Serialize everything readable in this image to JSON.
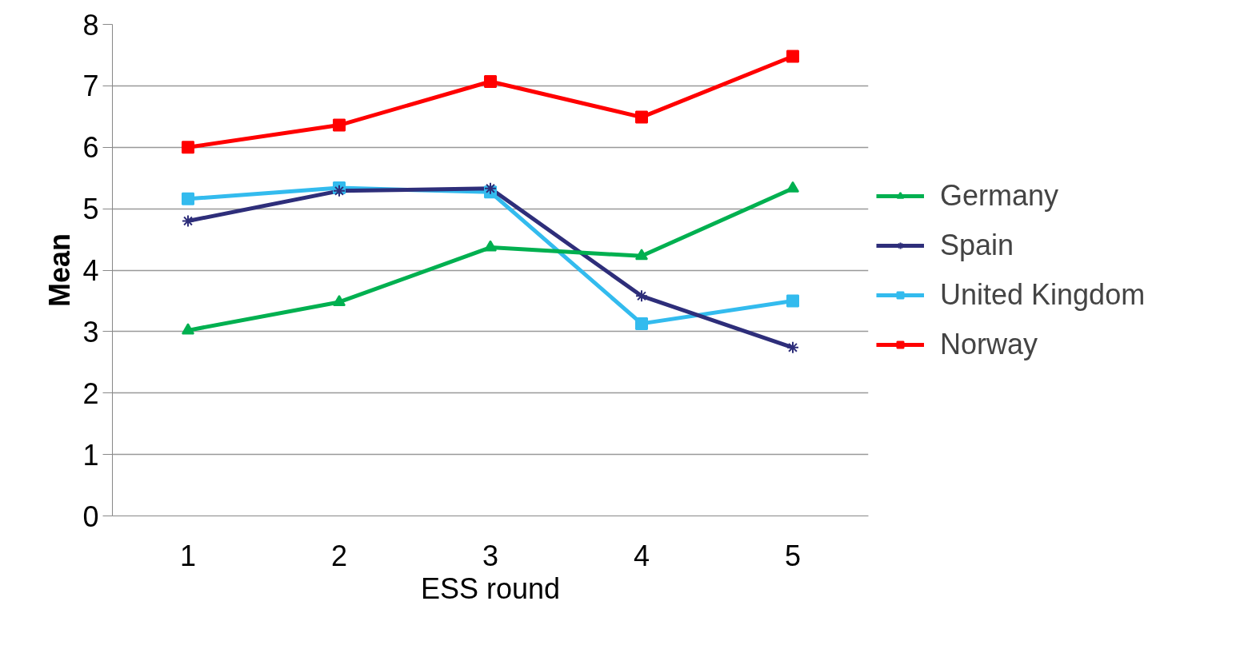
{
  "chart_data": {
    "type": "line",
    "xlabel": "ESS round",
    "ylabel": "Mean",
    "categories": [
      "1",
      "2",
      "3",
      "4",
      "5"
    ],
    "ylim": [
      0,
      8
    ],
    "yticks": [
      0,
      1,
      2,
      3,
      4,
      5,
      6,
      7,
      8
    ],
    "grid": "y",
    "legend": "right",
    "line_style": "solid",
    "series": [
      {
        "name": "Germany",
        "color": "#00b050",
        "marker": "triangle",
        "values": [
          3.02,
          3.48,
          4.37,
          4.23,
          5.33
        ]
      },
      {
        "name": "Spain",
        "color": "#2e2e7a",
        "marker": "cross",
        "values": [
          4.8,
          5.29,
          5.33,
          3.58,
          2.74
        ]
      },
      {
        "name": "United Kingdom",
        "color": "#33bbee",
        "marker": "square",
        "values": [
          5.16,
          5.34,
          5.27,
          3.13,
          3.5
        ]
      },
      {
        "name": "Norway",
        "color": "#ff0000",
        "marker": "square",
        "values": [
          6.0,
          6.36,
          7.07,
          6.49,
          7.48
        ]
      }
    ]
  }
}
